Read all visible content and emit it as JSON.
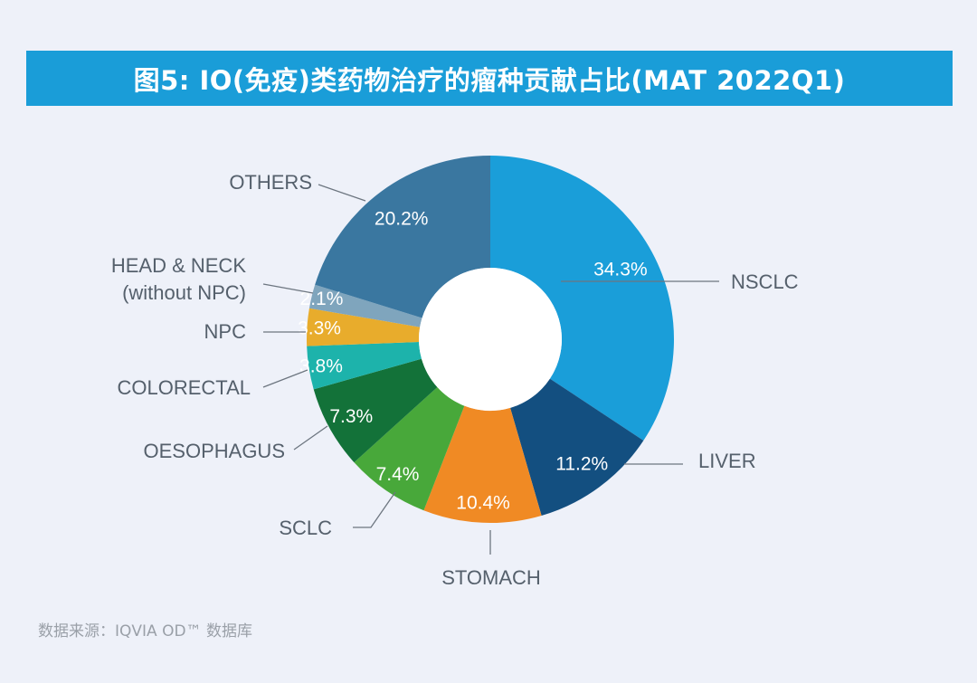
{
  "title": "图5: IO(免疫)类药物治疗的瘤种贡献占比(MAT 2022Q1)",
  "source": "数据来源：IQVIA OD™ 数据库",
  "chart_data": {
    "type": "pie",
    "variant": "donut",
    "title": "图5: IO(免疫)类药物治疗的瘤种贡献占比(MAT 2022Q1)",
    "start": "12 o'clock, clockwise",
    "unit": "%",
    "slices": [
      {
        "label": "NSCLC",
        "value": 34.3,
        "display": "34.3%",
        "color": "#1a9ed9"
      },
      {
        "label": "LIVER",
        "value": 11.2,
        "display": "11.2%",
        "color": "#134f80"
      },
      {
        "label": "STOMACH",
        "value": 10.4,
        "display": "10.4%",
        "color": "#f08a24"
      },
      {
        "label": "SCLC",
        "value": 7.4,
        "display": "7.4%",
        "color": "#48a83a"
      },
      {
        "label": "OESOPHAGUS",
        "value": 7.3,
        "display": "7.3%",
        "color": "#137239"
      },
      {
        "label": "COLORECTAL",
        "value": 3.8,
        "display": "3.8%",
        "color": "#1db3ab"
      },
      {
        "label": "NPC",
        "value": 3.3,
        "display": "3.3%",
        "color": "#e8ac2c"
      },
      {
        "label": "HEAD & NECK\n(without NPC)",
        "value": 2.1,
        "display": "2.1%",
        "color": "#7fa5bd"
      },
      {
        "label": "OTHERS",
        "value": 20.2,
        "display": "20.2%",
        "color": "#3a77a0"
      }
    ]
  }
}
